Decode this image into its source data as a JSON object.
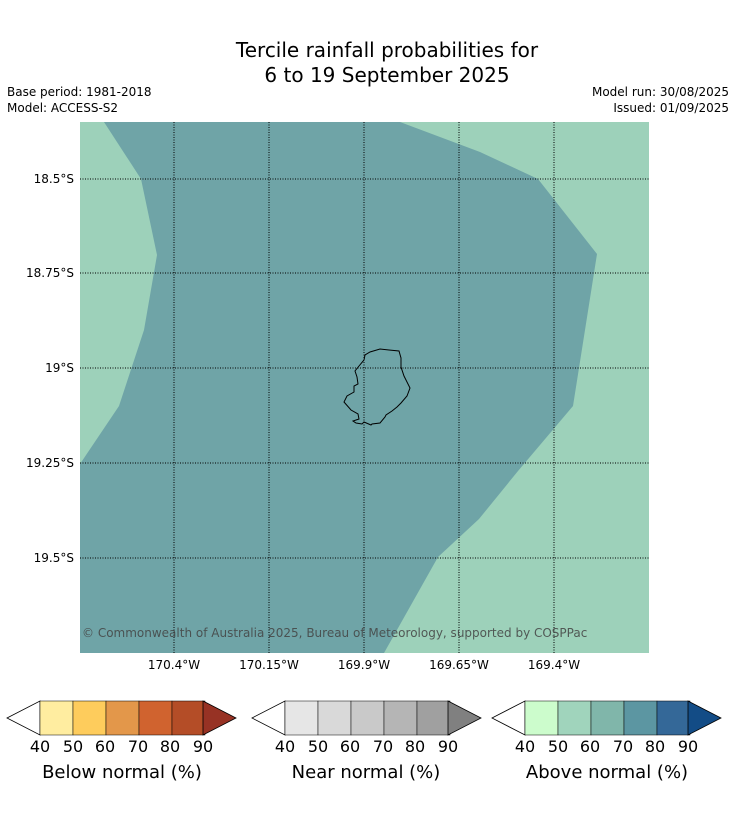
{
  "title_line1": "Tercile rainfall probabilities for",
  "title_line2": "6 to 19 September 2025",
  "base_period": "Base period: 1981-2018",
  "model": "Model: ACCESS-S2",
  "model_run": "Model run: 30/08/2025",
  "issued": "Issued: 01/09/2025",
  "copyright": "© Commonwealth of Australia 2025, Bureau of Meteorology, supported by COSPPac",
  "lat_labels": [
    "18.5°S",
    "18.75°S",
    "19°S",
    "19.25°S",
    "19.5°S"
  ],
  "lon_labels": [
    "170.4°W",
    "170.15°W",
    "169.9°W",
    "169.65°W",
    "169.4°W"
  ],
  "legend": {
    "below": {
      "title": "Below normal (%)",
      "ticks": [
        "40",
        "50",
        "60",
        "70",
        "80",
        "90"
      ],
      "colors": [
        "#ffeda0",
        "#fecc5c",
        "#e3974a",
        "#d0632f",
        "#b44d27",
        "#973224"
      ]
    },
    "near": {
      "title": "Near normal (%)",
      "ticks": [
        "40",
        "50",
        "60",
        "70",
        "80",
        "90"
      ],
      "colors": [
        "#e6e6e6",
        "#d9d9d9",
        "#c9c9c9",
        "#b5b5b5",
        "#a0a0a0",
        "#808080"
      ]
    },
    "above": {
      "title": "Above normal (%)",
      "ticks": [
        "40",
        "50",
        "60",
        "70",
        "80",
        "90"
      ],
      "colors": [
        "#ccfccc",
        "#a0d4bc",
        "#80b6aa",
        "#5c96a2",
        "#346898",
        "#134c86"
      ]
    }
  },
  "map_colors": {
    "above_50_60": "#9dd1ba",
    "above_60_70": "#6fa4a7",
    "coast": "#000000"
  }
}
